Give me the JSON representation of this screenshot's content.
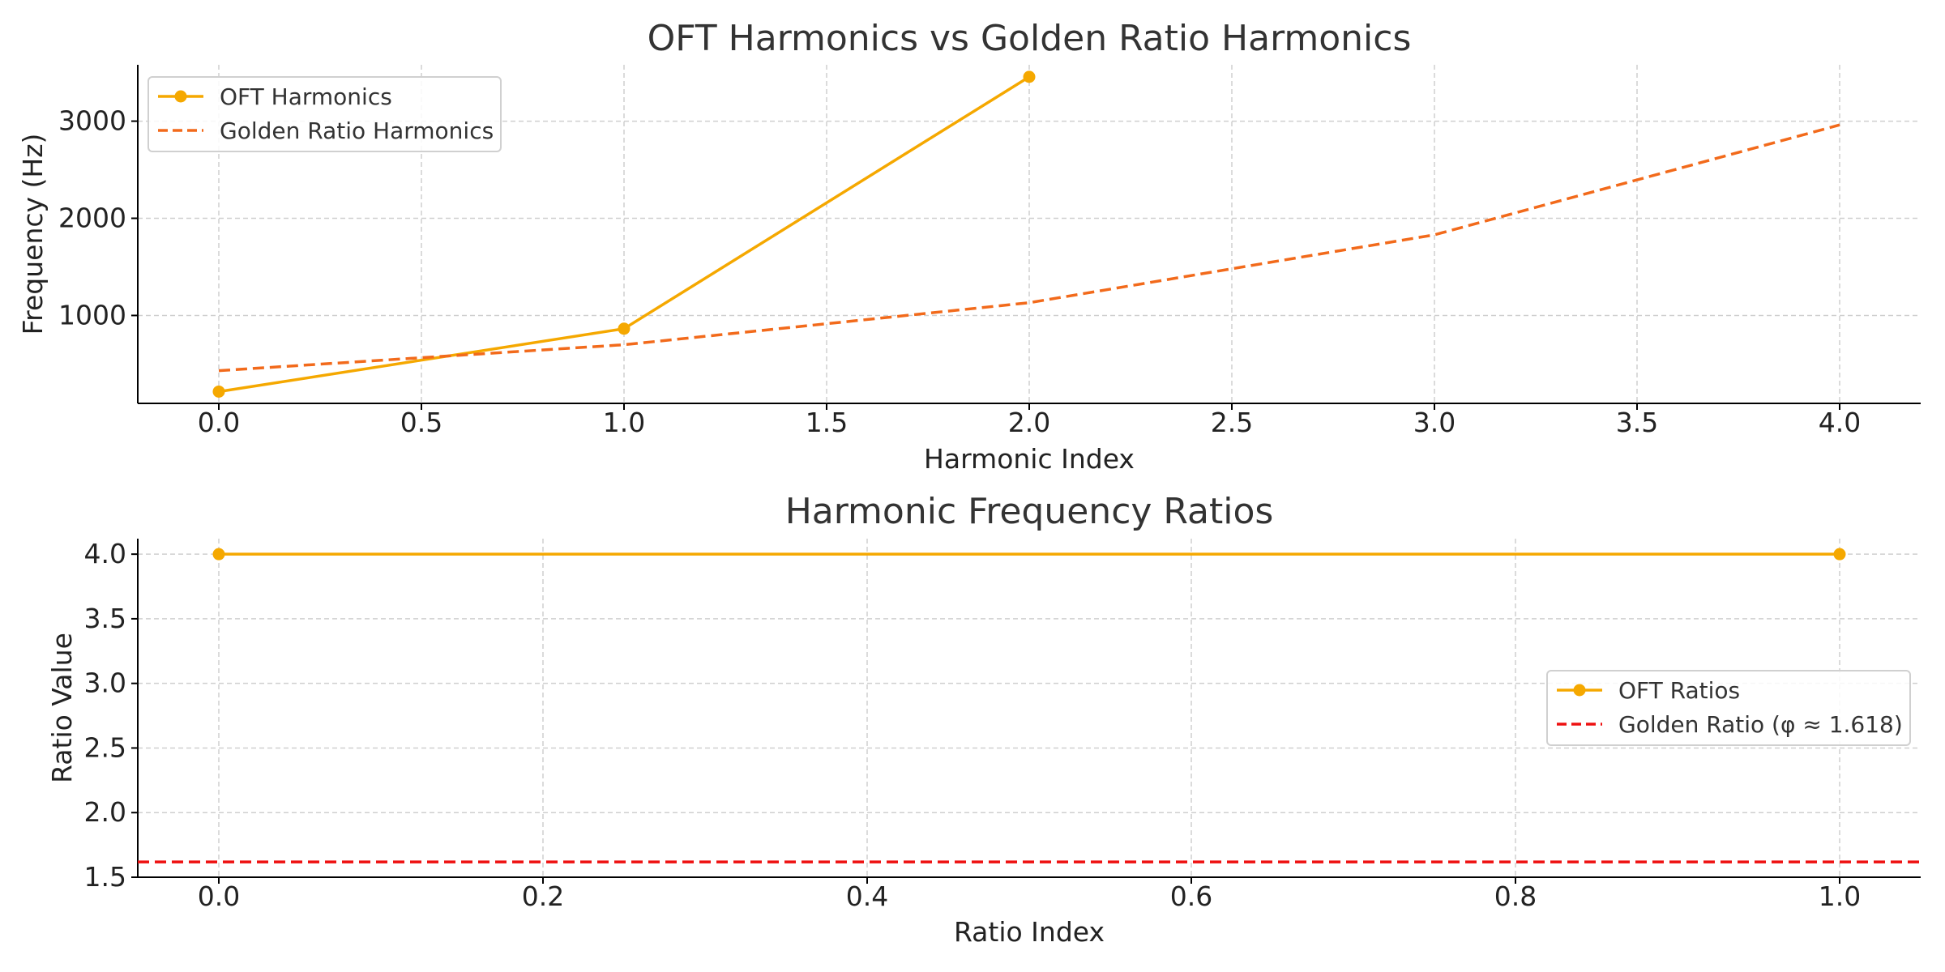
{
  "chart_data": [
    {
      "type": "line",
      "title": "OFT Harmonics vs Golden Ratio Harmonics",
      "xlabel": "Harmonic Index",
      "ylabel": "Frequency (Hz)",
      "xlim": [
        -0.2,
        4.2
      ],
      "ylim": [
        95,
        3580
      ],
      "x_ticks": [
        0.0,
        0.5,
        1.0,
        1.5,
        2.0,
        2.5,
        3.0,
        3.5,
        4.0
      ],
      "x_tick_labels": [
        "0.0",
        "0.5",
        "1.0",
        "1.5",
        "2.0",
        "2.5",
        "3.0",
        "3.5",
        "4.0"
      ],
      "y_ticks": [
        1000,
        2000,
        3000
      ],
      "y_tick_labels": [
        "1000",
        "2000",
        "3000"
      ],
      "grid": true,
      "legend_position": "top-left",
      "series": [
        {
          "name": "OFT Harmonics",
          "x": [
            0,
            1,
            2
          ],
          "values": [
            216,
            864,
            3456
          ],
          "color": "#f5a800",
          "style": "solid",
          "marker": "circle"
        },
        {
          "name": "Golden Ratio Harmonics",
          "x": [
            0,
            1,
            2,
            3,
            4
          ],
          "values": [
            432,
            699,
            1131,
            1830,
            2961
          ],
          "color": "#f26a1b",
          "style": "dashed",
          "marker": "none"
        }
      ]
    },
    {
      "type": "line",
      "title": "Harmonic Frequency Ratios",
      "xlabel": "Ratio Index",
      "ylabel": "Ratio Value",
      "xlim": [
        -0.05,
        1.05
      ],
      "ylim": [
        1.5,
        4.12
      ],
      "x_ticks": [
        0.0,
        0.2,
        0.4,
        0.6,
        0.8,
        1.0
      ],
      "x_tick_labels": [
        "0.0",
        "0.2",
        "0.4",
        "0.6",
        "0.8",
        "1.0"
      ],
      "y_ticks": [
        1.5,
        2.0,
        2.5,
        3.0,
        3.5,
        4.0
      ],
      "y_tick_labels": [
        "1.5",
        "2.0",
        "2.5",
        "3.0",
        "3.5",
        "4.0"
      ],
      "grid": true,
      "legend_position": "center-right",
      "series": [
        {
          "name": "OFT Ratios",
          "x": [
            0,
            1
          ],
          "values": [
            4.0,
            4.0
          ],
          "color": "#f5a800",
          "style": "solid",
          "marker": "circle"
        }
      ],
      "reference_lines": [
        {
          "name": "Golden Ratio (φ ≈ 1.618)",
          "y": 1.618,
          "color": "#ee1111",
          "style": "dashed"
        }
      ]
    }
  ]
}
